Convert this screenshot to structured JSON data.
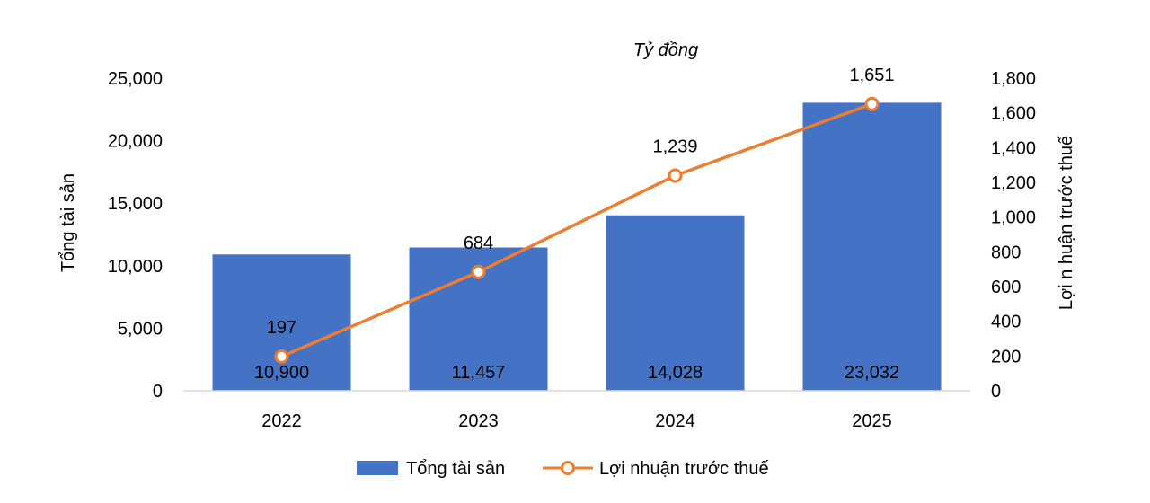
{
  "chart_data": {
    "type": "bar",
    "unit": "Tỷ đồng",
    "categories": [
      "2022",
      "2023",
      "2024",
      "2025"
    ],
    "series": [
      {
        "name": "Tổng tài sản",
        "type": "bar",
        "axis": "left",
        "color": "#4472C4",
        "values": [
          10900,
          11457,
          14028,
          23032
        ],
        "labels": [
          "10,900",
          "11,457",
          "14,028",
          "23,032"
        ]
      },
      {
        "name": "Lợi nhuận trước thuế",
        "type": "line",
        "axis": "right",
        "color": "#ED7D31",
        "values": [
          197,
          684,
          1239,
          1651
        ],
        "labels": [
          "197",
          "684",
          "1,239",
          "1,651"
        ]
      }
    ],
    "y_left": {
      "label": "Tổng tài sản",
      "range": [
        0,
        25000
      ],
      "ticks": [
        0,
        5000,
        10000,
        15000,
        20000,
        25000
      ],
      "tick_labels": [
        "0",
        "5,000",
        "10,000",
        "15,000",
        "20,000",
        "25,000"
      ]
    },
    "y_right": {
      "label": "Lợi n huận trước thuế",
      "range": [
        0,
        1800
      ],
      "ticks": [
        0,
        200,
        400,
        600,
        800,
        1000,
        1200,
        1400,
        1600,
        1800
      ],
      "tick_labels": [
        "0",
        "200",
        "400",
        "600",
        "800",
        "1,000",
        "1,200",
        "1,400",
        "1,600",
        "1,800"
      ]
    },
    "grid": false,
    "legend_position": "bottom"
  }
}
